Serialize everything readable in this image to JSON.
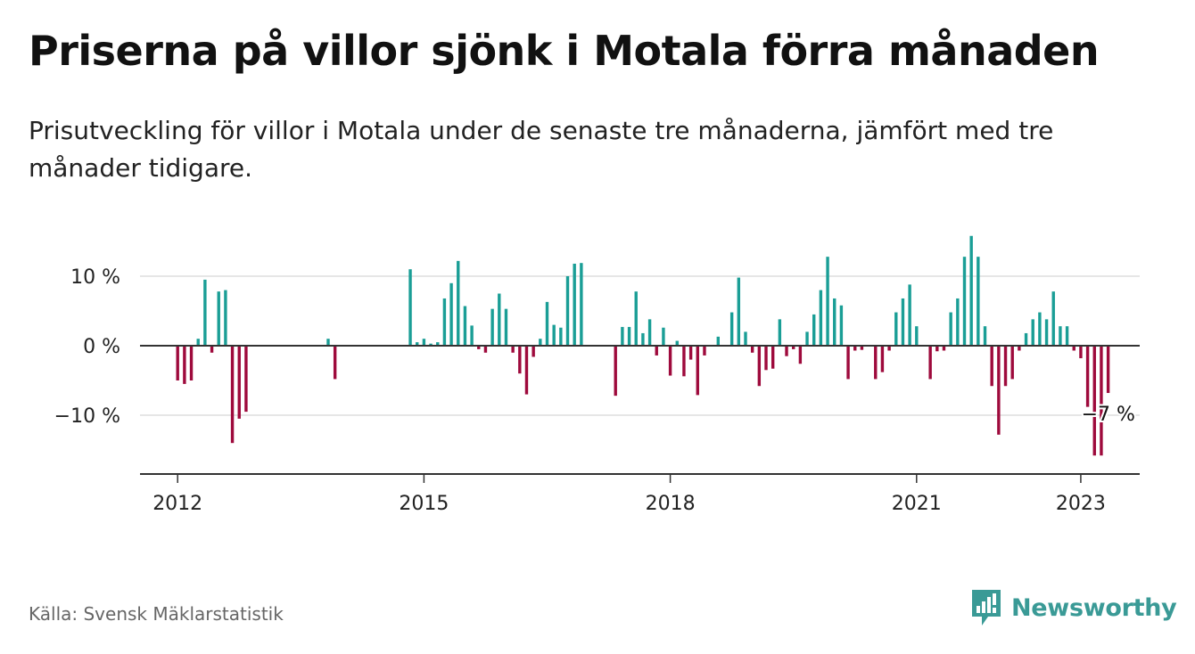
{
  "title": "Priserna på villor sjönk i Motala förra månaden",
  "subtitle": "Prisutveckling för villor i Motala under de senaste tre månaderna, jämfört med tre månader tidigare.",
  "source": "Källa: Svensk Mäklarstatistik",
  "brand": "Newsworthy",
  "colors": {
    "positive": "#1a9e96",
    "negative": "#9e0a3c",
    "grid": "#dddddd",
    "zero": "#333333",
    "brand": "#3a9a96"
  },
  "chart_data": {
    "type": "bar",
    "title": "Priserna på villor sjönk i Motala förra månaden",
    "subtitle": "Prisutveckling för villor i Motala under de senaste tre månaderna, jämfört med tre månader tidigare.",
    "xlabel": "",
    "ylabel": "",
    "x_ticks": [
      "2012",
      "2015",
      "2018",
      "2021",
      "2023"
    ],
    "y_ticks": [
      "10 %",
      "0 %",
      "−10 %"
    ],
    "ylim": [
      -18,
      14
    ],
    "grid": true,
    "annotation": "−7 %",
    "series": [
      {
        "values": [
          {
            "x": "2012-01",
            "y": -5
          },
          {
            "x": "2012-02",
            "y": -5.5
          },
          {
            "x": "2012-03",
            "y": -5
          },
          {
            "x": "2012-04",
            "y": 1
          },
          {
            "x": "2012-05",
            "y": 9.5
          },
          {
            "x": "2012-06",
            "y": -1
          },
          {
            "x": "2012-07",
            "y": 7.8
          },
          {
            "x": "2012-08",
            "y": 8
          },
          {
            "x": "2012-09",
            "y": -14
          },
          {
            "x": "2012-10",
            "y": -10.5
          },
          {
            "x": "2012-11",
            "y": -9.5
          },
          {
            "x": "2013-11",
            "y": 1
          },
          {
            "x": "2013-12",
            "y": -4.8
          },
          {
            "x": "2014-11",
            "y": 11
          },
          {
            "x": "2014-12",
            "y": 0.5
          },
          {
            "x": "2015-01",
            "y": 1
          },
          {
            "x": "2015-02",
            "y": 0.3
          },
          {
            "x": "2015-03",
            "y": 0.5
          },
          {
            "x": "2015-04",
            "y": 6.8
          },
          {
            "x": "2015-05",
            "y": 9
          },
          {
            "x": "2015-06",
            "y": 12.2
          },
          {
            "x": "2015-07",
            "y": 5.7
          },
          {
            "x": "2015-08",
            "y": 2.9
          },
          {
            "x": "2015-09",
            "y": -0.5
          },
          {
            "x": "2015-10",
            "y": -1
          },
          {
            "x": "2015-11",
            "y": 5.3
          },
          {
            "x": "2015-12",
            "y": 7.5
          },
          {
            "x": "2016-01",
            "y": 5.3
          },
          {
            "x": "2016-02",
            "y": -1
          },
          {
            "x": "2016-03",
            "y": -4
          },
          {
            "x": "2016-04",
            "y": -7
          },
          {
            "x": "2016-05",
            "y": -1.6
          },
          {
            "x": "2016-06",
            "y": 1
          },
          {
            "x": "2016-07",
            "y": 6.3
          },
          {
            "x": "2016-08",
            "y": 3
          },
          {
            "x": "2016-09",
            "y": 2.6
          },
          {
            "x": "2016-10",
            "y": 10
          },
          {
            "x": "2016-11",
            "y": 11.8
          },
          {
            "x": "2016-12",
            "y": 11.9
          },
          {
            "x": "2017-05",
            "y": -7.2
          },
          {
            "x": "2017-06",
            "y": 2.7
          },
          {
            "x": "2017-07",
            "y": 2.7
          },
          {
            "x": "2017-08",
            "y": 7.8
          },
          {
            "x": "2017-09",
            "y": 1.8
          },
          {
            "x": "2017-10",
            "y": 3.8
          },
          {
            "x": "2017-11",
            "y": -1.4
          },
          {
            "x": "2017-12",
            "y": 2.6
          },
          {
            "x": "2018-01",
            "y": -4.3
          },
          {
            "x": "2018-02",
            "y": 0.7
          },
          {
            "x": "2018-03",
            "y": -4.4
          },
          {
            "x": "2018-04",
            "y": -2
          },
          {
            "x": "2018-05",
            "y": -7.1
          },
          {
            "x": "2018-06",
            "y": -1.4
          },
          {
            "x": "2018-08",
            "y": 1.3
          },
          {
            "x": "2018-10",
            "y": 4.8
          },
          {
            "x": "2018-11",
            "y": 9.8
          },
          {
            "x": "2018-12",
            "y": 2
          },
          {
            "x": "2019-01",
            "y": -1
          },
          {
            "x": "2019-02",
            "y": -5.8
          },
          {
            "x": "2019-03",
            "y": -3.5
          },
          {
            "x": "2019-04",
            "y": -3.3
          },
          {
            "x": "2019-05",
            "y": 3.8
          },
          {
            "x": "2019-06",
            "y": -1.5
          },
          {
            "x": "2019-07",
            "y": -0.5
          },
          {
            "x": "2019-08",
            "y": -2.6
          },
          {
            "x": "2019-09",
            "y": 2
          },
          {
            "x": "2019-10",
            "y": 4.5
          },
          {
            "x": "2019-11",
            "y": 8
          },
          {
            "x": "2019-12",
            "y": 12.8
          },
          {
            "x": "2020-01",
            "y": 6.8
          },
          {
            "x": "2020-02",
            "y": 5.8
          },
          {
            "x": "2020-03",
            "y": -4.8
          },
          {
            "x": "2020-04",
            "y": -0.7
          },
          {
            "x": "2020-05",
            "y": -0.6
          },
          {
            "x": "2020-07",
            "y": -4.8
          },
          {
            "x": "2020-08",
            "y": -3.8
          },
          {
            "x": "2020-09",
            "y": -0.7
          },
          {
            "x": "2020-10",
            "y": 4.8
          },
          {
            "x": "2020-11",
            "y": 6.8
          },
          {
            "x": "2020-12",
            "y": 8.8
          },
          {
            "x": "2021-01",
            "y": 2.8
          },
          {
            "x": "2021-03",
            "y": -4.8
          },
          {
            "x": "2021-04",
            "y": -0.8
          },
          {
            "x": "2021-05",
            "y": -0.7
          },
          {
            "x": "2021-06",
            "y": 4.8
          },
          {
            "x": "2021-07",
            "y": 6.8
          },
          {
            "x": "2021-08",
            "y": 12.8
          },
          {
            "x": "2021-09",
            "y": 15.8
          },
          {
            "x": "2021-10",
            "y": 12.8
          },
          {
            "x": "2021-11",
            "y": 2.8
          },
          {
            "x": "2021-12",
            "y": -5.8
          },
          {
            "x": "2022-01",
            "y": -12.8
          },
          {
            "x": "2022-02",
            "y": -5.8
          },
          {
            "x": "2022-03",
            "y": -4.8
          },
          {
            "x": "2022-04",
            "y": -0.7
          },
          {
            "x": "2022-05",
            "y": 1.8
          },
          {
            "x": "2022-06",
            "y": 3.8
          },
          {
            "x": "2022-07",
            "y": 4.8
          },
          {
            "x": "2022-08",
            "y": 3.8
          },
          {
            "x": "2022-09",
            "y": 7.8
          },
          {
            "x": "2022-10",
            "y": 2.8
          },
          {
            "x": "2022-11",
            "y": 2.8
          },
          {
            "x": "2022-12",
            "y": -0.7
          },
          {
            "x": "2023-01",
            "y": -1.8
          },
          {
            "x": "2023-02",
            "y": -8.8
          },
          {
            "x": "2023-03",
            "y": -15.8
          },
          {
            "x": "2023-04",
            "y": -15.8
          },
          {
            "x": "2023-05",
            "y": -6.8
          }
        ]
      }
    ]
  }
}
